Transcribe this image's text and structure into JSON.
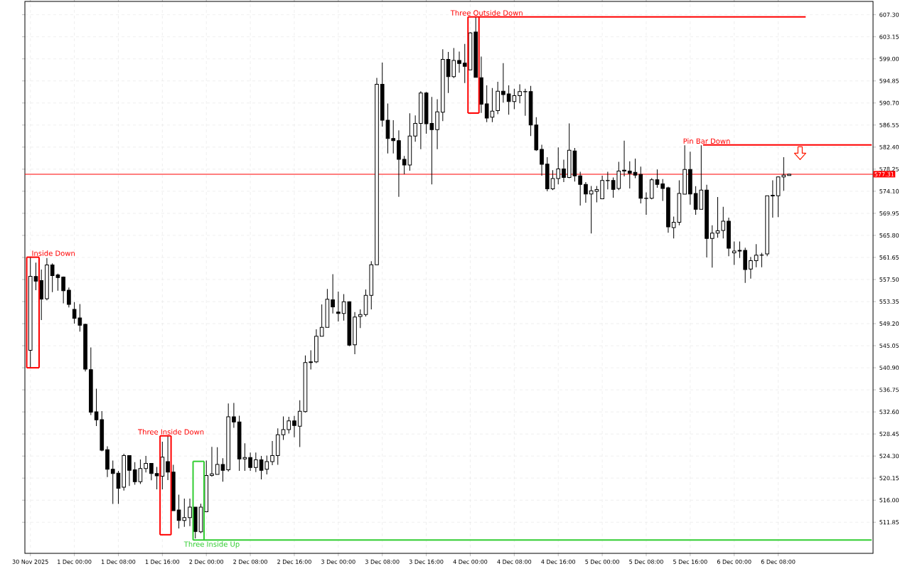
{
  "chart_data": {
    "type": "candlestick",
    "color": "#000000",
    "x": [
      "2025-11-30T16:00",
      "2025-11-30T17:00",
      "2025-11-30T18:00",
      "2025-11-30T19:00",
      "2025-11-30T20:00",
      "2025-11-30T21:00",
      "2025-11-30T22:00",
      "2025-11-30T23:00",
      "2025-12-01T00:00",
      "2025-12-01T01:00",
      "2025-12-01T02:00",
      "2025-12-01T03:00",
      "2025-12-01T04:00",
      "2025-12-01T05:00",
      "2025-12-01T06:00",
      "2025-12-01T07:00",
      "2025-12-01T08:00",
      "2025-12-01T09:00",
      "2025-12-01T10:00",
      "2025-12-01T11:00",
      "2025-12-01T12:00",
      "2025-12-01T13:00",
      "2025-12-01T14:00",
      "2025-12-01T15:00",
      "2025-12-01T16:00",
      "2025-12-01T17:00",
      "2025-12-01T18:00",
      "2025-12-01T19:00",
      "2025-12-01T20:00",
      "2025-12-01T21:00",
      "2025-12-01T22:00",
      "2025-12-01T23:00",
      "2025-12-02T00:00",
      "2025-12-02T01:00",
      "2025-12-02T02:00",
      "2025-12-02T03:00",
      "2025-12-02T04:00",
      "2025-12-02T05:00",
      "2025-12-02T06:00",
      "2025-12-02T07:00",
      "2025-12-02T08:00",
      "2025-12-02T09:00",
      "2025-12-02T10:00",
      "2025-12-02T11:00",
      "2025-12-02T12:00",
      "2025-12-02T13:00",
      "2025-12-02T14:00",
      "2025-12-02T15:00",
      "2025-12-02T16:00",
      "2025-12-02T17:00",
      "2025-12-02T18:00",
      "2025-12-02T19:00",
      "2025-12-02T20:00",
      "2025-12-02T21:00",
      "2025-12-02T22:00",
      "2025-12-02T23:00",
      "2025-12-03T00:00",
      "2025-12-03T01:00",
      "2025-12-03T02:00",
      "2025-12-03T03:00",
      "2025-12-03T04:00",
      "2025-12-03T05:00",
      "2025-12-03T06:00",
      "2025-12-03T07:00",
      "2025-12-03T08:00",
      "2025-12-03T09:00",
      "2025-12-03T10:00",
      "2025-12-03T11:00",
      "2025-12-03T12:00",
      "2025-12-03T13:00",
      "2025-12-03T14:00",
      "2025-12-03T15:00",
      "2025-12-03T16:00",
      "2025-12-03T17:00",
      "2025-12-03T18:00",
      "2025-12-03T19:00",
      "2025-12-03T20:00",
      "2025-12-03T21:00",
      "2025-12-03T22:00",
      "2025-12-03T23:00",
      "2025-12-04T00:00",
      "2025-12-04T01:00",
      "2025-12-04T02:00",
      "2025-12-04T03:00",
      "2025-12-04T04:00",
      "2025-12-04T05:00",
      "2025-12-04T06:00",
      "2025-12-04T07:00",
      "2025-12-04T08:00",
      "2025-12-04T09:00",
      "2025-12-04T10:00",
      "2025-12-04T11:00",
      "2025-12-04T12:00",
      "2025-12-04T13:00",
      "2025-12-04T14:00",
      "2025-12-04T15:00",
      "2025-12-04T16:00",
      "2025-12-04T17:00",
      "2025-12-04T18:00",
      "2025-12-04T19:00",
      "2025-12-04T20:00",
      "2025-12-04T21:00",
      "2025-12-04T22:00",
      "2025-12-04T23:00",
      "2025-12-05T00:00",
      "2025-12-05T01:00",
      "2025-12-05T02:00",
      "2025-12-05T03:00",
      "2025-12-05T04:00",
      "2025-12-05T05:00",
      "2025-12-05T06:00",
      "2025-12-05T07:00",
      "2025-12-05T08:00",
      "2025-12-05T09:00",
      "2025-12-05T10:00",
      "2025-12-05T11:00",
      "2025-12-05T12:00",
      "2025-12-05T13:00",
      "2025-12-05T14:00",
      "2025-12-05T15:00",
      "2025-12-05T16:00",
      "2025-12-05T17:00",
      "2025-12-05T18:00",
      "2025-12-05T19:00",
      "2025-12-05T20:00",
      "2025-12-05T21:00",
      "2025-12-05T22:00",
      "2025-12-05T23:00",
      "2025-12-06T00:00",
      "2025-12-06T01:00",
      "2025-12-06T02:00",
      "2025-12-06T03:00",
      "2025-12-06T04:00",
      "2025-12-06T05:00",
      "2025-12-06T06:00",
      "2025-12-06T07:00",
      "2025-12-06T08:00",
      "2025-12-06T09:00",
      "2025-12-06T10:00"
    ],
    "ohlc": [
      [
        544.2,
        561.7,
        540.9,
        558.1
      ],
      [
        558.08,
        560.68,
        555.48,
        557.21
      ],
      [
        557.3,
        559.38,
        549.86,
        553.83
      ],
      [
        553.88,
        561.55,
        553.6,
        560.25
      ],
      [
        560.25,
        560.55,
        555.13,
        558.25
      ],
      [
        558.38,
        558.6,
        555.39,
        557.86
      ],
      [
        557.95,
        558.08,
        553.02,
        555.39
      ],
      [
        555.48,
        556.0,
        552.24,
        552.8
      ],
      [
        551.89,
        553.24,
        549.21,
        550.2
      ],
      [
        550.29,
        552.89,
        547.69,
        548.9
      ],
      [
        549.08,
        549.21,
        540.2,
        540.64
      ],
      [
        540.55,
        544.74,
        532.02,
        532.54
      ],
      [
        532.63,
        536.95,
        529.94,
        531.11
      ],
      [
        531.16,
        532.76,
        525.18,
        525.39
      ],
      [
        525.48,
        526.13,
        520.33,
        521.81
      ],
      [
        521.81,
        523.44,
        515.31,
        521.03
      ],
      [
        521.07,
        521.5,
        515.31,
        518.25
      ],
      [
        518.43,
        524.74,
        517.82,
        524.4
      ],
      [
        524.4,
        524.4,
        518.69,
        521.63
      ],
      [
        521.72,
        523.15,
        518.9,
        519.47
      ],
      [
        519.47,
        523.67,
        519.03,
        521.94
      ],
      [
        521.94,
        524.31,
        521.2,
        522.93
      ],
      [
        522.93,
        522.93,
        519.73,
        521.03
      ],
      [
        521.03,
        522.24,
        518.04,
        520.59
      ],
      [
        520.51,
        527.0,
        518.04,
        524.09
      ],
      [
        523.24,
        528.08,
        519.77,
        521.29
      ],
      [
        521.29,
        522.66,
        514.02,
        514.02
      ],
      [
        514.15,
        517.04,
        510.68,
        512.2
      ],
      [
        512.2,
        516.3,
        510.98,
        512.72
      ],
      [
        512.72,
        516.3,
        511.11,
        514.7
      ],
      [
        514.7,
        514.7,
        508.82,
        510.12
      ],
      [
        510.03,
        515.32,
        509.81,
        514.7
      ],
      [
        513.84,
        523.44,
        513.84,
        520.64
      ],
      [
        520.64,
        526.04,
        520.42,
        520.94
      ],
      [
        520.85,
        525.96,
        520.85,
        522.72
      ],
      [
        522.72,
        523.89,
        519.47,
        521.63
      ],
      [
        521.72,
        534.19,
        521.37,
        531.68
      ],
      [
        531.68,
        534.28,
        529.6,
        530.72
      ],
      [
        530.72,
        531.89,
        521.5,
        523.76
      ],
      [
        523.76,
        526.69,
        521.5,
        524.02
      ],
      [
        524.02,
        524.96,
        521.5,
        522.15
      ],
      [
        522.15,
        524.96,
        521.29,
        523.58
      ],
      [
        523.58,
        524.31,
        519.9,
        521.63
      ],
      [
        521.81,
        524.4,
        520.85,
        523.24
      ],
      [
        523.24,
        527.13,
        522.59,
        524.4
      ],
      [
        524.4,
        529.51,
        522.66,
        528.3
      ],
      [
        528.3,
        531.76,
        527.34,
        529.29
      ],
      [
        529.26,
        531.68,
        528.55,
        530.9
      ],
      [
        530.9,
        531.86,
        527.82,
        530.04
      ],
      [
        529.9,
        534.8,
        526.0,
        532.73
      ],
      [
        532.64,
        543.22,
        532.5,
        541.87
      ],
      [
        541.87,
        544.18,
        540.57,
        542.02
      ],
      [
        542.02,
        548.12,
        541.77,
        546.82
      ],
      [
        546.82,
        552.83,
        546.82,
        548.51
      ],
      [
        548.51,
        555.73,
        548.51,
        553.79
      ],
      [
        553.7,
        558.51,
        551.11,
        552.35
      ],
      [
        551.39,
        555.24,
        549.61,
        551.11
      ],
      [
        551.11,
        554.76,
        549.76,
        553.32
      ],
      [
        553.32,
        553.42,
        544.95,
        545.15
      ],
      [
        545.24,
        551.39,
        543.46,
        550.43
      ],
      [
        550.53,
        551.87,
        548.37,
        550.91
      ],
      [
        550.91,
        555.63,
        550.54,
        554.52
      ],
      [
        554.52,
        560.93,
        551.87,
        560.29
      ],
      [
        560.29,
        595.41,
        560.29,
        594.2
      ],
      [
        594.2,
        598.29,
        586.26,
        587.47
      ],
      [
        587.47,
        590.6,
        581.21,
        584.0
      ],
      [
        584.0,
        587.47,
        581.21,
        583.63
      ],
      [
        583.63,
        585.55,
        573.04,
        580.11
      ],
      [
        580.11,
        580.73,
        577.28,
        579.05
      ],
      [
        579.05,
        588.77,
        577.95,
        584.48
      ],
      [
        584.48,
        588.38,
        583.41,
        586.87
      ],
      [
        586.87,
        592.92,
        582.02,
        592.59
      ],
      [
        592.59,
        592.79,
        584.93,
        586.78
      ],
      [
        586.87,
        591.85,
        575.39,
        585.7
      ],
      [
        585.7,
        591.42,
        582.02,
        589.03
      ],
      [
        588.95,
        600.81,
        587.3,
        598.9
      ],
      [
        598.9,
        600.29,
        592.59,
        595.65
      ],
      [
        595.65,
        601.03,
        595.39,
        598.69
      ],
      [
        598.69,
        600.38,
        596.39,
        598.12
      ],
      [
        598.21,
        601.81,
        594.44,
        597.6
      ],
      [
        596.91,
        604.0,
        596.91,
        603.89
      ],
      [
        604.05,
        606.9,
        595.52,
        595.52
      ],
      [
        595.44,
        599.42,
        588.82,
        590.46
      ],
      [
        590.55,
        594.02,
        587.08,
        587.86
      ],
      [
        588.04,
        593.5,
        587.08,
        589.16
      ],
      [
        589.25,
        594.67,
        588.6,
        592.92
      ],
      [
        592.92,
        598.21,
        590.77,
        592.28
      ],
      [
        592.41,
        594.02,
        588.51,
        590.98
      ],
      [
        590.98,
        593.37,
        589.55,
        592.07
      ],
      [
        592.07,
        594.22,
        590.64,
        592.85
      ],
      [
        592.85,
        593.37,
        588.3,
        592.8
      ],
      [
        592.85,
        593.93,
        584.48,
        586.56
      ],
      [
        586.56,
        588.04,
        581.68,
        581.89
      ],
      [
        581.98,
        582.85,
        577.04,
        579.16
      ],
      [
        579.21,
        580.51,
        574.09,
        574.54
      ],
      [
        574.54,
        578.08,
        574.31,
        576.48
      ],
      [
        576.48,
        582.33,
        575.39,
        578.3
      ],
      [
        578.3,
        580.03,
        575.83,
        576.69
      ],
      [
        576.69,
        586.87,
        576.56,
        581.81
      ],
      [
        581.68,
        582.24,
        575.91,
        577.0
      ],
      [
        577.0,
        577.78,
        571.42,
        575.39
      ],
      [
        575.39,
        575.83,
        571.94,
        573.57
      ],
      [
        573.57,
        575.09,
        566.17,
        574.18
      ],
      [
        574.09,
        575.09,
        572.02,
        574.41
      ],
      [
        572.67,
        577.04,
        572.67,
        576.13
      ],
      [
        576.13,
        577.78,
        574.44,
        576.1
      ],
      [
        576.13,
        576.69,
        572.89,
        574.44
      ],
      [
        574.61,
        579.64,
        574.31,
        577.91
      ],
      [
        578.08,
        583.63,
        576.91,
        577.91
      ],
      [
        577.91,
        579.73,
        574.61,
        577.47
      ],
      [
        577.65,
        580.25,
        576.56,
        577.13
      ],
      [
        577.26,
        578.73,
        571.81,
        572.79
      ],
      [
        572.79,
        573.89,
        569.68,
        572.75
      ],
      [
        572.79,
        576.56,
        572.59,
        576.26
      ],
      [
        576.26,
        578.21,
        574.74,
        575.39
      ],
      [
        575.48,
        576.39,
        572.28,
        574.61
      ],
      [
        574.74,
        574.96,
        566.3,
        567.39
      ],
      [
        567.26,
        569.34,
        565.22,
        568.25
      ],
      [
        568.25,
        576.17,
        567.69,
        573.67
      ],
      [
        573.54,
        582.76,
        573.54,
        578.21
      ],
      [
        578.21,
        581.55,
        571.59,
        573.57
      ],
      [
        573.67,
        575.06,
        569.68,
        570.72
      ],
      [
        570.72,
        582.76,
        570.72,
        574.31
      ],
      [
        574.31,
        575.31,
        561.63,
        565.22
      ],
      [
        565.22,
        567.69,
        559.73,
        566.22
      ],
      [
        566.22,
        573.02,
        565.35,
        566.65
      ],
      [
        566.74,
        571.16,
        565.22,
        568.47
      ],
      [
        568.47,
        569.12,
        561.89,
        563.37
      ],
      [
        562.5,
        564.66,
        560.25,
        562.85
      ],
      [
        562.98,
        564.66,
        561.55,
        562.85
      ],
      [
        562.98,
        563.5,
        556.87,
        559.38
      ],
      [
        559.47,
        561.76,
        557.65,
        561.03
      ],
      [
        561.03,
        564.15,
        559.81,
        562.07
      ],
      [
        562.07,
        562.5,
        559.81,
        562.11
      ],
      [
        562.33,
        573.24,
        561.89,
        573.24
      ],
      [
        573.2,
        576.17,
        569.12,
        573.35
      ],
      [
        573.24,
        576.91,
        569.25,
        576.78
      ],
      [
        576.78,
        580.51,
        574.18,
        577.13
      ],
      [
        577.05,
        577.38,
        577.0,
        577.31
      ]
    ],
    "series": [
      {
        "type": "line",
        "color": "#ff0000",
        "x": [
          "2025-11-30T15:20",
          "2025-11-30T17:35"
        ],
        "values": [
          561.7,
          561.7
        ]
      },
      {
        "type": "line",
        "color": "#ff0000",
        "x": [
          "2025-11-30T15:20",
          "2025-11-30T17:35"
        ],
        "values": [
          540.9,
          540.9
        ]
      },
      {
        "type": "line",
        "color": "#ff0000",
        "x": [
          "2025-12-01T15:35",
          "2025-12-01T17:35"
        ],
        "values": [
          528.1,
          528.1
        ]
      },
      {
        "type": "line",
        "color": "#ff0000",
        "x": [
          "2025-12-01T15:35",
          "2025-12-01T17:35"
        ],
        "values": [
          509.5,
          509.5
        ]
      },
      {
        "type": "line",
        "color": "#32cd32",
        "x": [
          "2025-12-01T21:35",
          "2025-12-01T23:35"
        ],
        "values": [
          523.3,
          523.3
        ]
      },
      {
        "type": "line",
        "color": "#32cd32",
        "x": [
          "2025-12-01T21:35",
          "2025-12-07T01:00"
        ],
        "values": [
          508.5,
          508.5
        ]
      },
      {
        "type": "line",
        "color": "#ff0000",
        "x": [
          "2025-12-03T23:35",
          "2025-12-06T13:00"
        ],
        "values": [
          606.9,
          606.9
        ]
      },
      {
        "type": "line",
        "color": "#ff0000",
        "x": [
          "2025-12-03T23:35",
          "2025-12-04T01:35"
        ],
        "values": [
          588.8,
          588.8
        ]
      },
      {
        "type": "line",
        "color": "#ff0000",
        "line_style": "solid",
        "x": [
          "2025-12-05T18:20",
          "2025-12-07T01:00"
        ],
        "values": [
          582.8,
          582.8
        ]
      }
    ],
    "ref_lines": [
      {
        "axis": "y",
        "value": 577.31,
        "label": "577.31",
        "color": "#ff0000"
      }
    ],
    "annotations": [
      {
        "text": "Inside Down",
        "x": "2025-11-30T16:00",
        "y": 561.7
      },
      {
        "text": "Three Inside Down",
        "x": "2025-12-01T17:35",
        "y": 528.1
      },
      {
        "text": "Three Inside Up",
        "x": "2025-12-02T01:00",
        "y": 508.5
      },
      {
        "text": "Three Outside Down",
        "x": "2025-12-04T03:00",
        "y": 606.9
      },
      {
        "text": "Pin Bar Down",
        "x": "2025-12-05T19:00",
        "y": 582.8
      }
    ],
    "xlim": [
      "2025-11-30T15:00",
      "2025-12-07T01:15"
    ],
    "ylim": [
      506.0,
      609.8
    ],
    "xticks": [
      {
        "value": "2025-11-30T16:00",
        "label": "30 Nov 2025"
      },
      {
        "value": "2025-12-01T00:00",
        "label": "1 Dec 00:00"
      },
      {
        "value": "2025-12-01T08:00",
        "label": "1 Dec 08:00"
      },
      {
        "value": "2025-12-01T16:00",
        "label": "1 Dec 16:00"
      },
      {
        "value": "2025-12-02T00:00",
        "label": "2 Dec 00:00"
      },
      {
        "value": "2025-12-02T08:00",
        "label": "2 Dec 08:00"
      },
      {
        "value": "2025-12-02T16:00",
        "label": "2 Dec 16:00"
      },
      {
        "value": "2025-12-03T00:00",
        "label": "3 Dec 00:00"
      },
      {
        "value": "2025-12-03T08:00",
        "label": "3 Dec 08:00"
      },
      {
        "value": "2025-12-03T16:00",
        "label": "3 Dec 16:00"
      },
      {
        "value": "2025-12-04T00:00",
        "label": "4 Dec 00:00"
      },
      {
        "value": "2025-12-04T08:00",
        "label": "4 Dec 08:00"
      },
      {
        "value": "2025-12-04T16:00",
        "label": "4 Dec 16:00"
      },
      {
        "value": "2025-12-05T00:00",
        "label": "5 Dec 00:00"
      },
      {
        "value": "2025-12-05T08:00",
        "label": "5 Dec 08:00"
      },
      {
        "value": "2025-12-05T16:00",
        "label": "5 Dec 16:00"
      },
      {
        "value": "2025-12-06T00:00",
        "label": "6 Dec 00:00"
      },
      {
        "value": "2025-12-06T08:00",
        "label": "6 Dec 08:00"
      }
    ],
    "yticks": [
      {
        "value": 511.85,
        "label": "511.85"
      },
      {
        "value": 516.0,
        "label": "516.00"
      },
      {
        "value": 520.15,
        "label": "520.15"
      },
      {
        "value": 524.3,
        "label": "524.30"
      },
      {
        "value": 528.45,
        "label": "528.45"
      },
      {
        "value": 532.6,
        "label": "532.60"
      },
      {
        "value": 536.75,
        "label": "536.75"
      },
      {
        "value": 540.9,
        "label": "540.90"
      },
      {
        "value": 545.05,
        "label": "545.05"
      },
      {
        "value": 549.2,
        "label": "549.20"
      },
      {
        "value": 553.35,
        "label": "553.35"
      },
      {
        "value": 557.5,
        "label": "557.50"
      },
      {
        "value": 561.65,
        "label": "561.65"
      },
      {
        "value": 565.8,
        "label": "565.80"
      },
      {
        "value": 569.95,
        "label": "569.95"
      },
      {
        "value": 574.1,
        "label": "574.10"
      },
      {
        "value": 578.25,
        "label": "578.25"
      },
      {
        "value": 582.4,
        "label": "582.40"
      },
      {
        "value": 586.55,
        "label": "586.55"
      },
      {
        "value": 590.7,
        "label": "590.70"
      },
      {
        "value": 594.85,
        "label": "594.85"
      },
      {
        "value": 599.0,
        "label": "599.00"
      },
      {
        "value": 603.15,
        "label": "603.15"
      },
      {
        "value": 607.3,
        "label": "607.30"
      }
    ],
    "grid": true
  }
}
